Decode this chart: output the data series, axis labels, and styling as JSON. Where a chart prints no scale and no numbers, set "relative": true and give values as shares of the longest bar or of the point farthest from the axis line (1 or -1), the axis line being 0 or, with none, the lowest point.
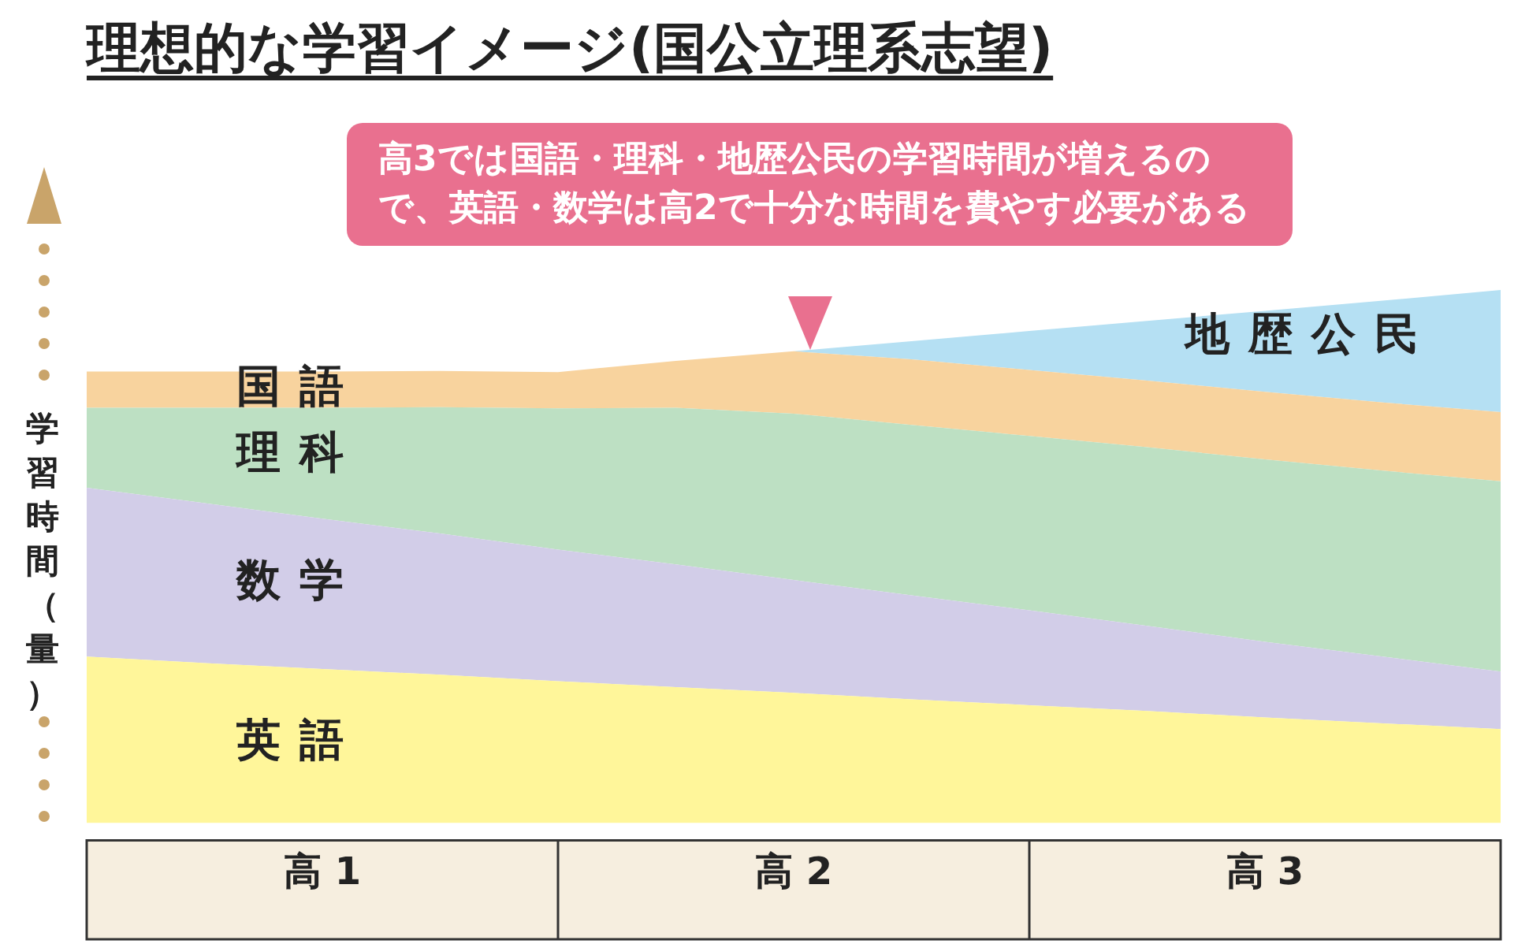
{
  "chart_data": {
    "type": "area",
    "title": "理想的な学習イメージ(国公立理系志望)",
    "ylabel": "学習時間（量）",
    "relative": true,
    "stacked": true,
    "annotations": [
      "高3では国語・理科・地歴公民の学習時間が増えるので、英語・数学は高2で十分な時間を費やす必要がある"
    ],
    "categories": [
      null,
      null,
      "高 1",
      null,
      null,
      null,
      "高 2",
      null,
      null,
      null,
      "高 3",
      null,
      null
    ],
    "series": [
      {
        "name": "英語",
        "color": "#fff69a",
        "values": [
          0.312,
          0.3,
          0.289,
          0.278,
          0.266,
          0.255,
          0.244,
          0.232,
          0.221,
          0.21,
          0.198,
          0.187,
          0.176
        ]
      },
      {
        "name": "数学",
        "color": "#d2cde8",
        "values": [
          0.317,
          0.3,
          0.282,
          0.265,
          0.247,
          0.23,
          0.212,
          0.195,
          0.178,
          0.16,
          0.142,
          0.125,
          0.108
        ]
      },
      {
        "name": "理科",
        "color": "#bde0c3",
        "values": [
          0.15,
          0.179,
          0.208,
          0.237,
          0.265,
          0.294,
          0.312,
          0.32,
          0.327,
          0.335,
          0.342,
          0.349,
          0.357
        ]
      },
      {
        "name": "国語",
        "color": "#f8d39e",
        "values": [
          0.068,
          0.068,
          0.068,
          0.068,
          0.068,
          0.088,
          0.117,
          0.123,
          0.124,
          0.125,
          0.127,
          0.128,
          0.13
        ]
      },
      {
        "name": "地歴公民",
        "color": "#b5e0f3",
        "values": [
          null,
          null,
          null,
          null,
          null,
          null,
          0,
          0.034,
          0.073,
          0.112,
          0.152,
          0.191,
          0.229
        ]
      }
    ]
  }
}
